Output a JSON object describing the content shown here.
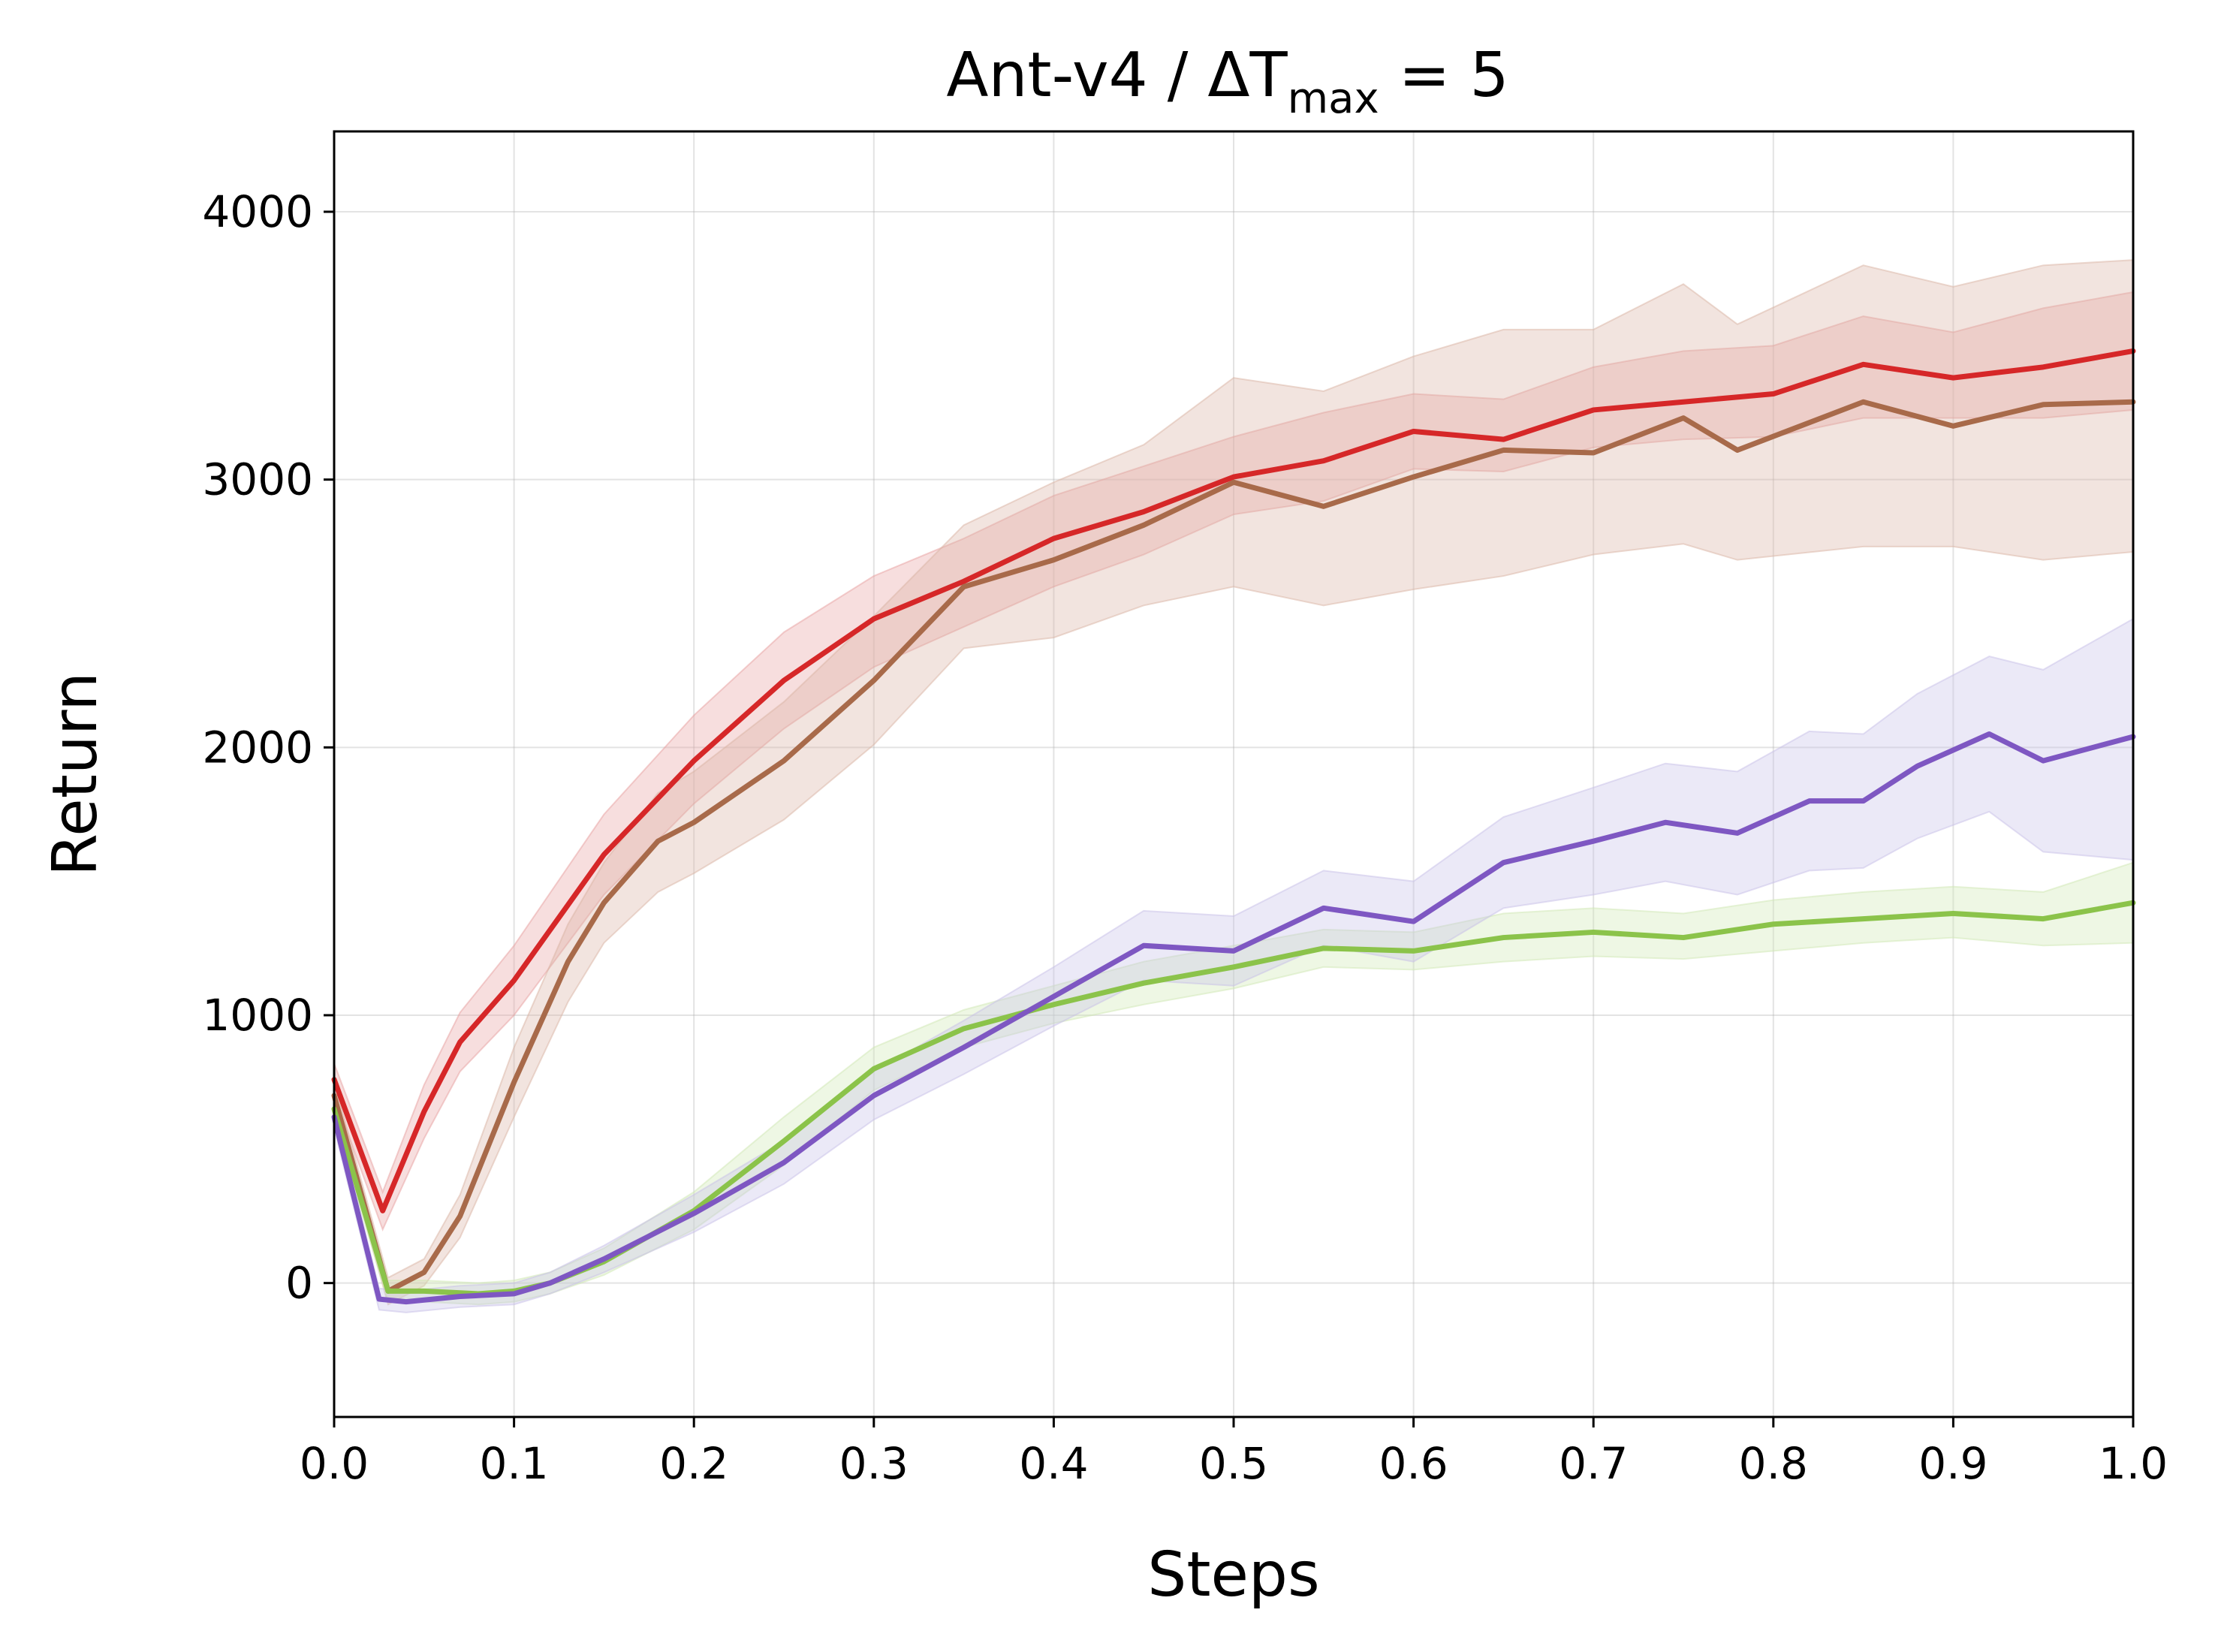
{
  "chart_data": {
    "type": "line",
    "title": {
      "main": "Ant-v4 / ΔT",
      "sub": "max",
      "suffix": " = 5"
    },
    "xlabel": "Steps",
    "ylabel": "Return",
    "xlim": [
      0.0,
      1.0
    ],
    "ylim": [
      -500,
      4300
    ],
    "xticks": [
      0.0,
      0.1,
      0.2,
      0.3,
      0.4,
      0.5,
      0.6,
      0.7,
      0.8,
      0.9,
      1.0
    ],
    "xtick_labels": [
      "0.0",
      "0.1",
      "0.2",
      "0.3",
      "0.4",
      "0.5",
      "0.6",
      "0.7",
      "0.8",
      "0.9",
      "1.0"
    ],
    "yticks": [
      0,
      1000,
      2000,
      3000,
      4000
    ],
    "ytick_labels": [
      "0",
      "1000",
      "2000",
      "3000",
      "4000"
    ],
    "grid": true,
    "legend": "none",
    "series": [
      {
        "color": "#d62728",
        "band_color": "#e8a0a0",
        "x": [
          0.0,
          0.027,
          0.05,
          0.07,
          0.1,
          0.15,
          0.2,
          0.25,
          0.3,
          0.35,
          0.4,
          0.45,
          0.5,
          0.55,
          0.6,
          0.65,
          0.7,
          0.75,
          0.8,
          0.85,
          0.9,
          0.95,
          1.0
        ],
        "y": [
          760,
          270,
          640,
          900,
          1130,
          1600,
          1950,
          2250,
          2480,
          2620,
          2780,
          2880,
          3010,
          3070,
          3180,
          3150,
          3260,
          3290,
          3320,
          3430,
          3380,
          3420,
          3480
        ],
        "lower": [
          700,
          200,
          540,
          790,
          1000,
          1450,
          1790,
          2070,
          2300,
          2450,
          2600,
          2720,
          2870,
          2920,
          3040,
          3030,
          3120,
          3150,
          3160,
          3230,
          3230,
          3230,
          3260
        ],
        "upper": [
          820,
          340,
          740,
          1010,
          1260,
          1750,
          2120,
          2430,
          2640,
          2780,
          2940,
          3050,
          3160,
          3250,
          3320,
          3300,
          3420,
          3480,
          3500,
          3610,
          3550,
          3640,
          3700
        ]
      },
      {
        "color": "#a86a4a",
        "band_color": "#d9b3a3",
        "x": [
          0.0,
          0.03,
          0.05,
          0.07,
          0.1,
          0.13,
          0.15,
          0.18,
          0.2,
          0.25,
          0.3,
          0.35,
          0.4,
          0.45,
          0.5,
          0.55,
          0.6,
          0.65,
          0.7,
          0.75,
          0.78,
          0.85,
          0.9,
          0.95,
          1.0
        ],
        "y": [
          700,
          -30,
          40,
          250,
          750,
          1200,
          1420,
          1650,
          1720,
          1950,
          2250,
          2600,
          2700,
          2830,
          2990,
          2900,
          3010,
          3110,
          3100,
          3230,
          3110,
          3290,
          3200,
          3280,
          3290
        ],
        "lower": [
          650,
          -80,
          -10,
          170,
          620,
          1050,
          1270,
          1460,
          1530,
          1730,
          2010,
          2370,
          2410,
          2530,
          2600,
          2530,
          2590,
          2640,
          2720,
          2760,
          2700,
          2750,
          2750,
          2700,
          2730
        ],
        "upper": [
          750,
          20,
          90,
          330,
          880,
          1340,
          1570,
          1830,
          1910,
          2170,
          2490,
          2830,
          2990,
          3130,
          3380,
          3330,
          3460,
          3560,
          3560,
          3730,
          3580,
          3800,
          3720,
          3800,
          3820
        ]
      },
      {
        "color": "#8bc34a",
        "band_color": "#cfe7b3",
        "x": [
          0.0,
          0.03,
          0.05,
          0.08,
          0.1,
          0.12,
          0.15,
          0.2,
          0.25,
          0.3,
          0.35,
          0.4,
          0.45,
          0.5,
          0.55,
          0.6,
          0.65,
          0.7,
          0.75,
          0.8,
          0.85,
          0.9,
          0.95,
          1.0
        ],
        "y": [
          650,
          -30,
          -30,
          -40,
          -30,
          0,
          80,
          270,
          530,
          800,
          950,
          1040,
          1120,
          1180,
          1250,
          1240,
          1290,
          1310,
          1290,
          1340,
          1360,
          1380,
          1360,
          1420
        ],
        "lower": [
          610,
          -70,
          -70,
          -80,
          -70,
          -40,
          30,
          200,
          440,
          720,
          880,
          970,
          1040,
          1100,
          1180,
          1170,
          1200,
          1220,
          1210,
          1240,
          1270,
          1290,
          1260,
          1270
        ],
        "upper": [
          690,
          10,
          10,
          0,
          10,
          40,
          130,
          340,
          620,
          880,
          1020,
          1110,
          1200,
          1260,
          1320,
          1310,
          1380,
          1400,
          1380,
          1430,
          1460,
          1480,
          1460,
          1570
        ]
      },
      {
        "color": "#7e57c2",
        "band_color": "#c7bfe8",
        "x": [
          0.0,
          0.025,
          0.04,
          0.07,
          0.1,
          0.12,
          0.15,
          0.2,
          0.25,
          0.3,
          0.35,
          0.4,
          0.45,
          0.5,
          0.55,
          0.6,
          0.65,
          0.7,
          0.74,
          0.78,
          0.82,
          0.85,
          0.88,
          0.92,
          0.95,
          1.0
        ],
        "y": [
          620,
          -60,
          -70,
          -50,
          -40,
          0,
          90,
          260,
          450,
          700,
          880,
          1070,
          1260,
          1240,
          1400,
          1350,
          1570,
          1650,
          1720,
          1680,
          1800,
          1800,
          1930,
          2050,
          1950,
          2040
        ],
        "lower": [
          580,
          -100,
          -110,
          -90,
          -80,
          -40,
          40,
          190,
          370,
          610,
          780,
          960,
          1130,
          1110,
          1260,
          1200,
          1400,
          1450,
          1500,
          1450,
          1540,
          1550,
          1660,
          1760,
          1610,
          1580
        ],
        "upper": [
          660,
          -20,
          -30,
          -10,
          0,
          40,
          140,
          330,
          530,
          790,
          980,
          1180,
          1390,
          1370,
          1540,
          1500,
          1740,
          1850,
          1940,
          1910,
          2060,
          2050,
          2200,
          2340,
          2290,
          2480
        ]
      }
    ]
  }
}
